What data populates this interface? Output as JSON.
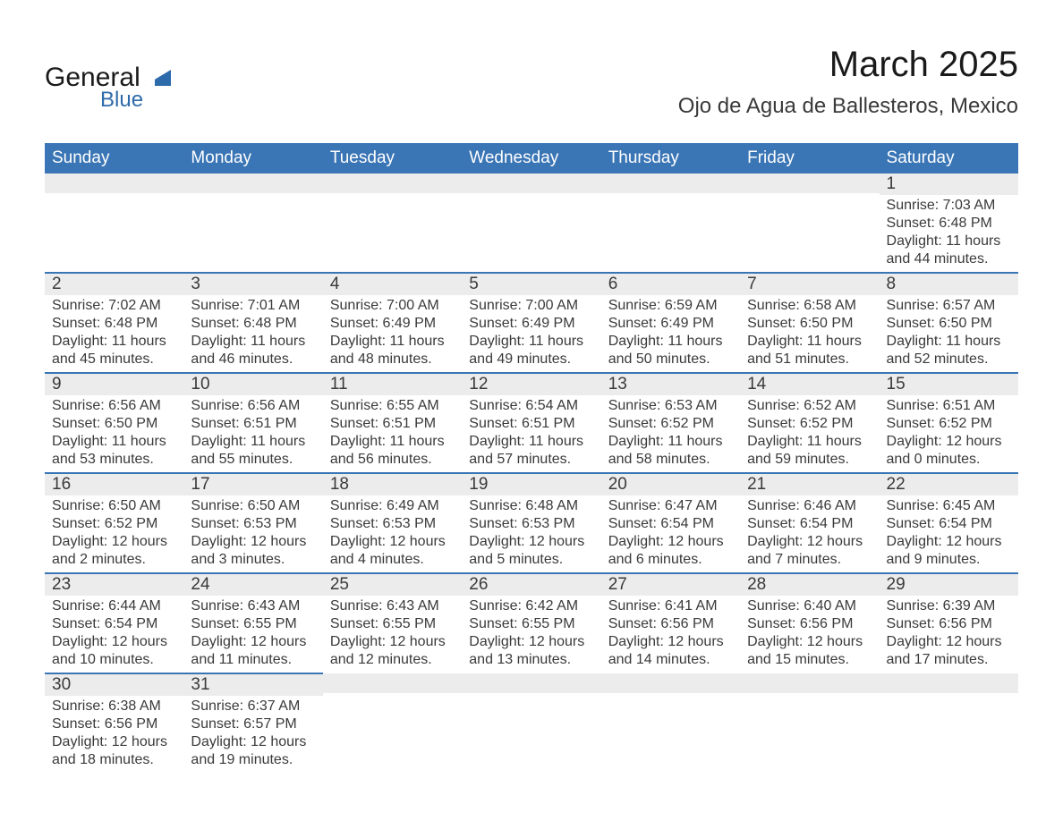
{
  "logo": {
    "word1": "General",
    "word2": "Blue",
    "accent_color": "#2e6bab",
    "text_color": "#1a1a1a"
  },
  "title": "March 2025",
  "subtitle": "Ojo de Agua de Ballesteros, Mexico",
  "colors": {
    "header_bg": "#3a75b5",
    "header_fg": "#ffffff",
    "row_divider": "#3a75b5",
    "daynum_bg": "#ececec",
    "body_text": "#3a3a3a",
    "page_bg": "#ffffff"
  },
  "fonts": {
    "title_size_pt": 30,
    "subtitle_size_pt": 18,
    "header_size_pt": 14,
    "daynum_size_pt": 14,
    "body_size_pt": 12
  },
  "days_of_week": [
    "Sunday",
    "Monday",
    "Tuesday",
    "Wednesday",
    "Thursday",
    "Friday",
    "Saturday"
  ],
  "labels": {
    "sunrise": "Sunrise",
    "sunset": "Sunset",
    "daylight": "Daylight"
  },
  "weeks": [
    [
      null,
      null,
      null,
      null,
      null,
      null,
      {
        "day": 1,
        "sunrise": "7:03 AM",
        "sunset": "6:48 PM",
        "daylight": "11 hours and 44 minutes."
      }
    ],
    [
      {
        "day": 2,
        "sunrise": "7:02 AM",
        "sunset": "6:48 PM",
        "daylight": "11 hours and 45 minutes."
      },
      {
        "day": 3,
        "sunrise": "7:01 AM",
        "sunset": "6:48 PM",
        "daylight": "11 hours and 46 minutes."
      },
      {
        "day": 4,
        "sunrise": "7:00 AM",
        "sunset": "6:49 PM",
        "daylight": "11 hours and 48 minutes."
      },
      {
        "day": 5,
        "sunrise": "7:00 AM",
        "sunset": "6:49 PM",
        "daylight": "11 hours and 49 minutes."
      },
      {
        "day": 6,
        "sunrise": "6:59 AM",
        "sunset": "6:49 PM",
        "daylight": "11 hours and 50 minutes."
      },
      {
        "day": 7,
        "sunrise": "6:58 AM",
        "sunset": "6:50 PM",
        "daylight": "11 hours and 51 minutes."
      },
      {
        "day": 8,
        "sunrise": "6:57 AM",
        "sunset": "6:50 PM",
        "daylight": "11 hours and 52 minutes."
      }
    ],
    [
      {
        "day": 9,
        "sunrise": "6:56 AM",
        "sunset": "6:50 PM",
        "daylight": "11 hours and 53 minutes."
      },
      {
        "day": 10,
        "sunrise": "6:56 AM",
        "sunset": "6:51 PM",
        "daylight": "11 hours and 55 minutes."
      },
      {
        "day": 11,
        "sunrise": "6:55 AM",
        "sunset": "6:51 PM",
        "daylight": "11 hours and 56 minutes."
      },
      {
        "day": 12,
        "sunrise": "6:54 AM",
        "sunset": "6:51 PM",
        "daylight": "11 hours and 57 minutes."
      },
      {
        "day": 13,
        "sunrise": "6:53 AM",
        "sunset": "6:52 PM",
        "daylight": "11 hours and 58 minutes."
      },
      {
        "day": 14,
        "sunrise": "6:52 AM",
        "sunset": "6:52 PM",
        "daylight": "11 hours and 59 minutes."
      },
      {
        "day": 15,
        "sunrise": "6:51 AM",
        "sunset": "6:52 PM",
        "daylight": "12 hours and 0 minutes."
      }
    ],
    [
      {
        "day": 16,
        "sunrise": "6:50 AM",
        "sunset": "6:52 PM",
        "daylight": "12 hours and 2 minutes."
      },
      {
        "day": 17,
        "sunrise": "6:50 AM",
        "sunset": "6:53 PM",
        "daylight": "12 hours and 3 minutes."
      },
      {
        "day": 18,
        "sunrise": "6:49 AM",
        "sunset": "6:53 PM",
        "daylight": "12 hours and 4 minutes."
      },
      {
        "day": 19,
        "sunrise": "6:48 AM",
        "sunset": "6:53 PM",
        "daylight": "12 hours and 5 minutes."
      },
      {
        "day": 20,
        "sunrise": "6:47 AM",
        "sunset": "6:54 PM",
        "daylight": "12 hours and 6 minutes."
      },
      {
        "day": 21,
        "sunrise": "6:46 AM",
        "sunset": "6:54 PM",
        "daylight": "12 hours and 7 minutes."
      },
      {
        "day": 22,
        "sunrise": "6:45 AM",
        "sunset": "6:54 PM",
        "daylight": "12 hours and 9 minutes."
      }
    ],
    [
      {
        "day": 23,
        "sunrise": "6:44 AM",
        "sunset": "6:54 PM",
        "daylight": "12 hours and 10 minutes."
      },
      {
        "day": 24,
        "sunrise": "6:43 AM",
        "sunset": "6:55 PM",
        "daylight": "12 hours and 11 minutes."
      },
      {
        "day": 25,
        "sunrise": "6:43 AM",
        "sunset": "6:55 PM",
        "daylight": "12 hours and 12 minutes."
      },
      {
        "day": 26,
        "sunrise": "6:42 AM",
        "sunset": "6:55 PM",
        "daylight": "12 hours and 13 minutes."
      },
      {
        "day": 27,
        "sunrise": "6:41 AM",
        "sunset": "6:56 PM",
        "daylight": "12 hours and 14 minutes."
      },
      {
        "day": 28,
        "sunrise": "6:40 AM",
        "sunset": "6:56 PM",
        "daylight": "12 hours and 15 minutes."
      },
      {
        "day": 29,
        "sunrise": "6:39 AM",
        "sunset": "6:56 PM",
        "daylight": "12 hours and 17 minutes."
      }
    ],
    [
      {
        "day": 30,
        "sunrise": "6:38 AM",
        "sunset": "6:56 PM",
        "daylight": "12 hours and 18 minutes."
      },
      {
        "day": 31,
        "sunrise": "6:37 AM",
        "sunset": "6:57 PM",
        "daylight": "12 hours and 19 minutes."
      },
      null,
      null,
      null,
      null,
      null
    ]
  ]
}
